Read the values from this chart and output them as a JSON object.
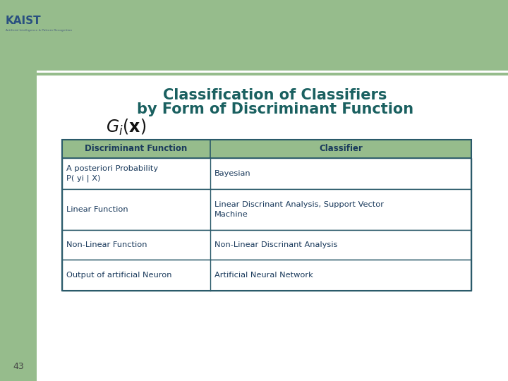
{
  "title_line1": "Classification of Classifiers",
  "title_line2": "by Form of Discriminant Function",
  "title_color": "#1a6060",
  "bg_color": "#e8e8e8",
  "green_color": "#96bc8c",
  "green_line_color": "#96bc8c",
  "white_color": "#ffffff",
  "table_border_color": "#2a5a6a",
  "table_text_color": "#1a3a5c",
  "header_fill": "#96bc8c",
  "header_row": [
    "Discriminant Function",
    "Classifier"
  ],
  "rows": [
    [
      "A posteriori Probability\nP( yi | X)",
      "Bayesian"
    ],
    [
      "Linear Function",
      "Linear Discrinant Analysis, Support Vector\nMachine"
    ],
    [
      "Non-Linear Function",
      "Non-Linear Discrinant Analysis"
    ],
    [
      "Output of artificial Neuron",
      "Artificial Neural Network"
    ]
  ],
  "page_number": "43",
  "logo_text": "KAIST",
  "logo_sub": "Artificial Intelligence & Pattern Recognition"
}
